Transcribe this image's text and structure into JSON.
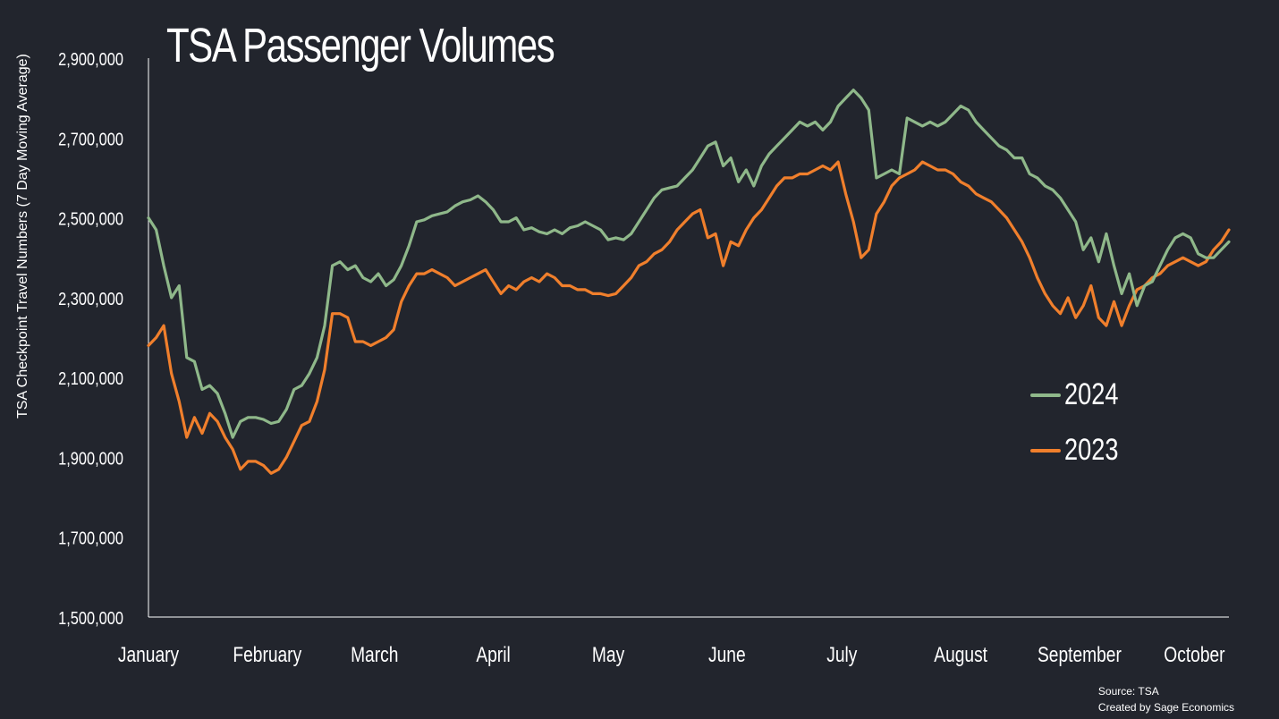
{
  "chart_data": {
    "type": "line",
    "title": "TSA Passenger Volumes",
    "ylabel": "TSA Checkpoint Travel Numbers (7 Day Moving Average)",
    "xlabel": "",
    "ylim": [
      1500000,
      2900000
    ],
    "yticks": [
      "1,500,000",
      "1,700,000",
      "1,900,000",
      "2,100,000",
      "2,300,000",
      "2,500,000",
      "2,700,000",
      "2,900,000"
    ],
    "ytick_values": [
      1500000,
      1700000,
      1900000,
      2100000,
      2300000,
      2500000,
      2700000,
      2900000
    ],
    "month_labels": [
      "January",
      "February",
      "March",
      "April",
      "May",
      "June",
      "July",
      "August",
      "September",
      "October"
    ],
    "month_positions": [
      0,
      31,
      59,
      90,
      120,
      151,
      181,
      212,
      243,
      273
    ],
    "x_unit": "day of year",
    "xlim": [
      0,
      280
    ],
    "grid": false,
    "legend_placement": "right",
    "series": [
      {
        "name": "2024",
        "color": "#8fb88a",
        "points": [
          [
            0,
            2500000
          ],
          [
            2,
            2470000
          ],
          [
            4,
            2380000
          ],
          [
            6,
            2300000
          ],
          [
            8,
            2330000
          ],
          [
            10,
            2150000
          ],
          [
            12,
            2140000
          ],
          [
            14,
            2070000
          ],
          [
            16,
            2080000
          ],
          [
            18,
            2060000
          ],
          [
            20,
            2010000
          ],
          [
            22,
            1950000
          ],
          [
            24,
            1990000
          ],
          [
            26,
            2000000
          ],
          [
            28,
            2000000
          ],
          [
            30,
            1995000
          ],
          [
            32,
            1985000
          ],
          [
            34,
            1990000
          ],
          [
            36,
            2020000
          ],
          [
            38,
            2070000
          ],
          [
            40,
            2080000
          ],
          [
            42,
            2110000
          ],
          [
            44,
            2150000
          ],
          [
            46,
            2230000
          ],
          [
            48,
            2380000
          ],
          [
            50,
            2390000
          ],
          [
            52,
            2370000
          ],
          [
            54,
            2380000
          ],
          [
            56,
            2350000
          ],
          [
            58,
            2340000
          ],
          [
            60,
            2360000
          ],
          [
            62,
            2330000
          ],
          [
            64,
            2345000
          ],
          [
            66,
            2380000
          ],
          [
            68,
            2430000
          ],
          [
            70,
            2490000
          ],
          [
            72,
            2495000
          ],
          [
            74,
            2505000
          ],
          [
            76,
            2510000
          ],
          [
            78,
            2515000
          ],
          [
            80,
            2530000
          ],
          [
            82,
            2540000
          ],
          [
            84,
            2545000
          ],
          [
            86,
            2555000
          ],
          [
            88,
            2540000
          ],
          [
            90,
            2520000
          ],
          [
            92,
            2490000
          ],
          [
            94,
            2490000
          ],
          [
            96,
            2500000
          ],
          [
            98,
            2470000
          ],
          [
            100,
            2475000
          ],
          [
            102,
            2465000
          ],
          [
            104,
            2460000
          ],
          [
            106,
            2470000
          ],
          [
            108,
            2460000
          ],
          [
            110,
            2475000
          ],
          [
            112,
            2480000
          ],
          [
            114,
            2490000
          ],
          [
            116,
            2480000
          ],
          [
            118,
            2470000
          ],
          [
            120,
            2445000
          ],
          [
            122,
            2450000
          ],
          [
            124,
            2445000
          ],
          [
            126,
            2460000
          ],
          [
            128,
            2490000
          ],
          [
            130,
            2520000
          ],
          [
            132,
            2550000
          ],
          [
            134,
            2570000
          ],
          [
            136,
            2575000
          ],
          [
            138,
            2580000
          ],
          [
            140,
            2600000
          ],
          [
            142,
            2620000
          ],
          [
            144,
            2650000
          ],
          [
            146,
            2680000
          ],
          [
            148,
            2690000
          ],
          [
            150,
            2630000
          ],
          [
            152,
            2650000
          ],
          [
            154,
            2590000
          ],
          [
            156,
            2620000
          ],
          [
            158,
            2580000
          ],
          [
            160,
            2630000
          ],
          [
            162,
            2660000
          ],
          [
            164,
            2680000
          ],
          [
            166,
            2700000
          ],
          [
            168,
            2720000
          ],
          [
            170,
            2740000
          ],
          [
            172,
            2730000
          ],
          [
            174,
            2740000
          ],
          [
            176,
            2720000
          ],
          [
            178,
            2740000
          ],
          [
            180,
            2780000
          ],
          [
            182,
            2800000
          ],
          [
            184,
            2820000
          ],
          [
            186,
            2800000
          ],
          [
            188,
            2770000
          ],
          [
            190,
            2600000
          ],
          [
            192,
            2610000
          ],
          [
            194,
            2620000
          ],
          [
            196,
            2610000
          ],
          [
            198,
            2750000
          ],
          [
            200,
            2740000
          ],
          [
            202,
            2730000
          ],
          [
            204,
            2740000
          ],
          [
            206,
            2730000
          ],
          [
            208,
            2740000
          ],
          [
            210,
            2760000
          ],
          [
            212,
            2780000
          ],
          [
            214,
            2770000
          ],
          [
            216,
            2740000
          ],
          [
            218,
            2720000
          ],
          [
            220,
            2700000
          ],
          [
            222,
            2680000
          ],
          [
            224,
            2670000
          ],
          [
            226,
            2650000
          ],
          [
            228,
            2650000
          ],
          [
            230,
            2610000
          ],
          [
            232,
            2600000
          ],
          [
            234,
            2580000
          ],
          [
            236,
            2570000
          ],
          [
            238,
            2550000
          ],
          [
            240,
            2520000
          ],
          [
            242,
            2490000
          ],
          [
            244,
            2420000
          ],
          [
            246,
            2450000
          ],
          [
            248,
            2390000
          ],
          [
            250,
            2460000
          ],
          [
            252,
            2380000
          ],
          [
            254,
            2310000
          ],
          [
            256,
            2360000
          ],
          [
            258,
            2280000
          ],
          [
            260,
            2330000
          ],
          [
            262,
            2340000
          ],
          [
            264,
            2380000
          ],
          [
            266,
            2420000
          ],
          [
            268,
            2450000
          ],
          [
            270,
            2460000
          ],
          [
            272,
            2450000
          ],
          [
            274,
            2410000
          ],
          [
            276,
            2400000
          ],
          [
            278,
            2400000
          ],
          [
            280,
            2420000
          ],
          [
            282,
            2440000
          ]
        ]
      },
      {
        "name": "2023",
        "color": "#f07f2c",
        "points": [
          [
            0,
            2180000
          ],
          [
            2,
            2200000
          ],
          [
            4,
            2230000
          ],
          [
            6,
            2110000
          ],
          [
            8,
            2040000
          ],
          [
            10,
            1950000
          ],
          [
            12,
            2000000
          ],
          [
            14,
            1960000
          ],
          [
            16,
            2010000
          ],
          [
            18,
            1990000
          ],
          [
            20,
            1950000
          ],
          [
            22,
            1920000
          ],
          [
            24,
            1870000
          ],
          [
            26,
            1890000
          ],
          [
            28,
            1890000
          ],
          [
            30,
            1880000
          ],
          [
            32,
            1860000
          ],
          [
            34,
            1870000
          ],
          [
            36,
            1900000
          ],
          [
            38,
            1940000
          ],
          [
            40,
            1980000
          ],
          [
            42,
            1990000
          ],
          [
            44,
            2040000
          ],
          [
            46,
            2120000
          ],
          [
            48,
            2260000
          ],
          [
            50,
            2260000
          ],
          [
            52,
            2250000
          ],
          [
            54,
            2190000
          ],
          [
            56,
            2190000
          ],
          [
            58,
            2180000
          ],
          [
            60,
            2190000
          ],
          [
            62,
            2200000
          ],
          [
            64,
            2220000
          ],
          [
            66,
            2290000
          ],
          [
            68,
            2330000
          ],
          [
            70,
            2360000
          ],
          [
            72,
            2360000
          ],
          [
            74,
            2370000
          ],
          [
            76,
            2360000
          ],
          [
            78,
            2350000
          ],
          [
            80,
            2330000
          ],
          [
            82,
            2340000
          ],
          [
            84,
            2350000
          ],
          [
            86,
            2360000
          ],
          [
            88,
            2370000
          ],
          [
            90,
            2340000
          ],
          [
            92,
            2310000
          ],
          [
            94,
            2330000
          ],
          [
            96,
            2320000
          ],
          [
            98,
            2340000
          ],
          [
            100,
            2350000
          ],
          [
            102,
            2340000
          ],
          [
            104,
            2360000
          ],
          [
            106,
            2350000
          ],
          [
            108,
            2330000
          ],
          [
            110,
            2330000
          ],
          [
            112,
            2320000
          ],
          [
            114,
            2320000
          ],
          [
            116,
            2310000
          ],
          [
            118,
            2310000
          ],
          [
            120,
            2305000
          ],
          [
            122,
            2310000
          ],
          [
            124,
            2330000
          ],
          [
            126,
            2350000
          ],
          [
            128,
            2380000
          ],
          [
            130,
            2390000
          ],
          [
            132,
            2410000
          ],
          [
            134,
            2420000
          ],
          [
            136,
            2440000
          ],
          [
            138,
            2470000
          ],
          [
            140,
            2490000
          ],
          [
            142,
            2510000
          ],
          [
            144,
            2520000
          ],
          [
            146,
            2450000
          ],
          [
            148,
            2460000
          ],
          [
            150,
            2380000
          ],
          [
            152,
            2440000
          ],
          [
            154,
            2430000
          ],
          [
            156,
            2470000
          ],
          [
            158,
            2500000
          ],
          [
            160,
            2520000
          ],
          [
            162,
            2550000
          ],
          [
            164,
            2580000
          ],
          [
            166,
            2600000
          ],
          [
            168,
            2600000
          ],
          [
            170,
            2610000
          ],
          [
            172,
            2610000
          ],
          [
            174,
            2620000
          ],
          [
            176,
            2630000
          ],
          [
            178,
            2620000
          ],
          [
            180,
            2640000
          ],
          [
            182,
            2560000
          ],
          [
            184,
            2490000
          ],
          [
            186,
            2400000
          ],
          [
            188,
            2420000
          ],
          [
            190,
            2510000
          ],
          [
            192,
            2540000
          ],
          [
            194,
            2580000
          ],
          [
            196,
            2600000
          ],
          [
            198,
            2610000
          ],
          [
            200,
            2620000
          ],
          [
            202,
            2640000
          ],
          [
            204,
            2630000
          ],
          [
            206,
            2620000
          ],
          [
            208,
            2620000
          ],
          [
            210,
            2610000
          ],
          [
            212,
            2590000
          ],
          [
            214,
            2580000
          ],
          [
            216,
            2560000
          ],
          [
            218,
            2550000
          ],
          [
            220,
            2540000
          ],
          [
            222,
            2520000
          ],
          [
            224,
            2500000
          ],
          [
            226,
            2470000
          ],
          [
            228,
            2440000
          ],
          [
            230,
            2400000
          ],
          [
            232,
            2350000
          ],
          [
            234,
            2310000
          ],
          [
            236,
            2280000
          ],
          [
            238,
            2260000
          ],
          [
            240,
            2300000
          ],
          [
            242,
            2250000
          ],
          [
            244,
            2280000
          ],
          [
            246,
            2330000
          ],
          [
            248,
            2250000
          ],
          [
            250,
            2230000
          ],
          [
            252,
            2290000
          ],
          [
            254,
            2230000
          ],
          [
            256,
            2280000
          ],
          [
            258,
            2320000
          ],
          [
            260,
            2330000
          ],
          [
            262,
            2350000
          ],
          [
            264,
            2360000
          ],
          [
            266,
            2380000
          ],
          [
            268,
            2390000
          ],
          [
            270,
            2400000
          ],
          [
            272,
            2390000
          ],
          [
            274,
            2380000
          ],
          [
            276,
            2390000
          ],
          [
            278,
            2420000
          ],
          [
            280,
            2440000
          ],
          [
            282,
            2470000
          ]
        ]
      }
    ],
    "source_line1": "Source: TSA",
    "source_line2": "Created by Sage Economics"
  }
}
